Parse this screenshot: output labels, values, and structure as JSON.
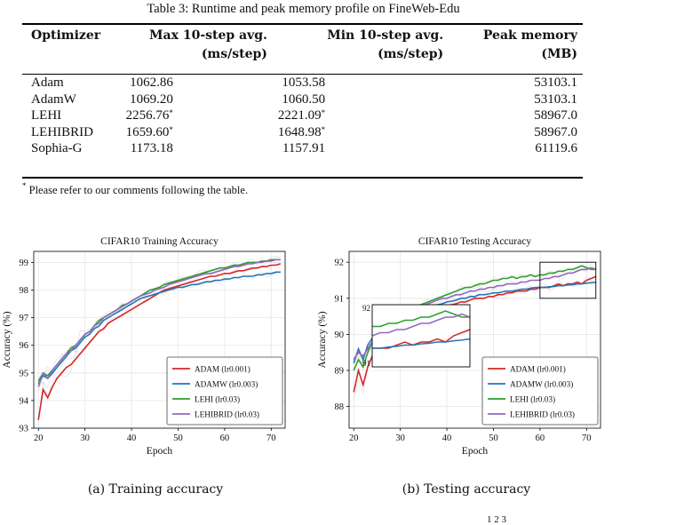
{
  "table": {
    "caption": "Table 3: Runtime and peak memory profile on FineWeb-Edu",
    "headers": [
      {
        "line1": "Optimizer",
        "line2": ""
      },
      {
        "line1": "Max 10-step avg.",
        "line2": "(ms/step)"
      },
      {
        "line1": "Min 10-step avg.",
        "line2": "(ms/step)"
      },
      {
        "line1": "Peak memory",
        "line2": "(MB)"
      }
    ],
    "rows": [
      {
        "name": "Adam",
        "max": "1062.86",
        "max_mark": "",
        "min": "1053.58",
        "min_mark": "",
        "mem": "53103.1"
      },
      {
        "name": "AdamW",
        "max": "1069.20",
        "max_mark": "",
        "min": "1060.50",
        "min_mark": "",
        "mem": "53103.1"
      },
      {
        "name": "LEHI",
        "max": "2256.76",
        "max_mark": "*",
        "min": "2221.09",
        "min_mark": "*",
        "mem": "58967.0"
      },
      {
        "name": "LEHIBRID",
        "max": "1659.60",
        "max_mark": "*",
        "min": "1648.98",
        "min_mark": "*",
        "mem": "58967.0"
      },
      {
        "name": "Sophia-G",
        "max": "1173.18",
        "max_mark": "",
        "min": "1157.91",
        "min_mark": "",
        "mem": "61119.6"
      }
    ],
    "footnote_mark": "*",
    "footnote_text": "Please refer to our comments following the table."
  },
  "figures": [
    {
      "subcaption": "(a) Training accuracy"
    },
    {
      "subcaption": "(b) Testing accuracy"
    }
  ],
  "page_fragment": "1          2     3",
  "chart_data": [
    {
      "type": "line",
      "title": "CIFAR10 Training Accuracy",
      "xlabel": "Epoch",
      "ylabel": "Accuracy (%)",
      "xlim": [
        19,
        73
      ],
      "ylim": [
        93,
        99.4
      ],
      "xticks": [
        20,
        30,
        40,
        50,
        60,
        70
      ],
      "yticks": [
        93,
        94,
        95,
        96,
        97,
        98,
        99
      ],
      "grid": true,
      "legend": "bottom-right",
      "x": [
        20,
        21,
        22,
        23,
        24,
        25,
        26,
        27,
        28,
        29,
        30,
        31,
        32,
        33,
        34,
        35,
        36,
        37,
        38,
        39,
        40,
        41,
        42,
        43,
        44,
        45,
        46,
        47,
        48,
        49,
        50,
        51,
        52,
        53,
        54,
        55,
        56,
        57,
        58,
        59,
        60,
        61,
        62,
        63,
        64,
        65,
        66,
        67,
        68,
        69,
        70,
        71,
        72
      ],
      "series": [
        {
          "name": "ADAM (lr0.001)",
          "color": "#d62728",
          "values": [
            93.3,
            94.4,
            94.1,
            94.5,
            94.8,
            95.0,
            95.2,
            95.3,
            95.5,
            95.7,
            95.9,
            96.1,
            96.3,
            96.5,
            96.6,
            96.8,
            96.9,
            97.0,
            97.1,
            97.2,
            97.3,
            97.4,
            97.5,
            97.6,
            97.7,
            97.8,
            97.9,
            98.0,
            98.05,
            98.1,
            98.15,
            98.2,
            98.25,
            98.3,
            98.35,
            98.4,
            98.45,
            98.5,
            98.5,
            98.55,
            98.6,
            98.6,
            98.65,
            98.7,
            98.7,
            98.75,
            98.8,
            98.8,
            98.85,
            98.85,
            98.9,
            98.9,
            98.95
          ]
        },
        {
          "name": "ADAMW (lr0.003)",
          "color": "#1f77b4",
          "values": [
            94.6,
            94.9,
            94.8,
            95.0,
            95.2,
            95.4,
            95.6,
            95.8,
            95.9,
            96.1,
            96.3,
            96.4,
            96.6,
            96.7,
            96.9,
            97.0,
            97.1,
            97.2,
            97.3,
            97.4,
            97.5,
            97.6,
            97.7,
            97.75,
            97.8,
            97.85,
            97.9,
            97.95,
            98.0,
            98.05,
            98.1,
            98.1,
            98.15,
            98.2,
            98.2,
            98.25,
            98.3,
            98.3,
            98.35,
            98.35,
            98.4,
            98.4,
            98.45,
            98.45,
            98.5,
            98.5,
            98.5,
            98.55,
            98.55,
            98.6,
            98.6,
            98.65,
            98.65
          ]
        },
        {
          "name": "LEHI (lr0.03)",
          "color": "#2ca02c",
          "values": [
            94.7,
            95.0,
            94.9,
            95.1,
            95.3,
            95.5,
            95.7,
            95.9,
            96.0,
            96.2,
            96.4,
            96.5,
            96.7,
            96.9,
            97.0,
            97.1,
            97.2,
            97.3,
            97.45,
            97.5,
            97.6,
            97.7,
            97.8,
            97.9,
            98.0,
            98.05,
            98.1,
            98.2,
            98.25,
            98.3,
            98.35,
            98.4,
            98.45,
            98.5,
            98.55,
            98.6,
            98.65,
            98.7,
            98.75,
            98.8,
            98.8,
            98.85,
            98.9,
            98.9,
            98.95,
            99.0,
            99.0,
            99.0,
            99.05,
            99.05,
            99.1,
            99.1,
            99.1
          ]
        },
        {
          "name": "LEHIBRID (lr0.03)",
          "color": "#9467bd",
          "values": [
            94.5,
            95.0,
            94.8,
            95.1,
            95.3,
            95.5,
            95.7,
            95.8,
            96.0,
            96.2,
            96.4,
            96.5,
            96.7,
            96.8,
            97.0,
            97.1,
            97.2,
            97.3,
            97.4,
            97.5,
            97.6,
            97.7,
            97.8,
            97.85,
            97.9,
            98.0,
            98.05,
            98.1,
            98.2,
            98.25,
            98.3,
            98.35,
            98.4,
            98.45,
            98.5,
            98.55,
            98.6,
            98.6,
            98.65,
            98.7,
            98.75,
            98.8,
            98.85,
            98.85,
            98.9,
            98.95,
            98.95,
            99.0,
            99.0,
            99.05,
            99.05,
            99.1,
            99.1
          ]
        }
      ]
    },
    {
      "type": "line",
      "title": "CIFAR10 Testing Accuracy",
      "xlabel": "Epoch",
      "ylabel": "Accuracy (%)",
      "xlim": [
        19,
        73
      ],
      "ylim": [
        87.4,
        92.3
      ],
      "xticks": [
        20,
        30,
        40,
        50,
        60,
        70
      ],
      "yticks": [
        88,
        89,
        90,
        91,
        92
      ],
      "grid": true,
      "legend": "bottom-right",
      "inset": {
        "xlim": [
          60,
          72
        ],
        "ylim": [
          91,
          92
        ],
        "yticks": [
          91,
          92
        ]
      },
      "x": [
        20,
        21,
        22,
        23,
        24,
        25,
        26,
        27,
        28,
        29,
        30,
        31,
        32,
        33,
        34,
        35,
        36,
        37,
        38,
        39,
        40,
        41,
        42,
        43,
        44,
        45,
        46,
        47,
        48,
        49,
        50,
        51,
        52,
        53,
        54,
        55,
        56,
        57,
        58,
        59,
        60,
        61,
        62,
        63,
        64,
        65,
        66,
        67,
        68,
        69,
        70,
        71,
        72
      ],
      "series": [
        {
          "name": "ADAM (lr0.001)",
          "color": "#d62728",
          "values": [
            88.4,
            89.0,
            88.6,
            89.1,
            89.4,
            89.6,
            89.8,
            89.9,
            90.0,
            90.1,
            90.2,
            90.3,
            90.4,
            90.45,
            90.5,
            90.55,
            90.6,
            90.65,
            90.7,
            90.75,
            90.8,
            90.82,
            90.85,
            90.9,
            90.9,
            90.95,
            91.0,
            91.0,
            91.0,
            91.05,
            91.05,
            91.1,
            91.1,
            91.15,
            91.15,
            91.2,
            91.2,
            91.2,
            91.25,
            91.25,
            91.3,
            91.3,
            91.3,
            91.35,
            91.4,
            91.35,
            91.4,
            91.4,
            91.45,
            91.4,
            91.5,
            91.55,
            91.6
          ]
        },
        {
          "name": "ADAMW (lr0.003)",
          "color": "#1f77b4",
          "values": [
            89.2,
            89.6,
            89.3,
            89.7,
            89.9,
            90.0,
            90.1,
            90.2,
            90.3,
            90.4,
            90.45,
            90.5,
            90.55,
            90.6,
            90.65,
            90.7,
            90.75,
            90.8,
            90.82,
            90.85,
            90.9,
            90.92,
            90.95,
            91.0,
            91.0,
            91.05,
            91.05,
            91.1,
            91.1,
            91.12,
            91.15,
            91.15,
            91.18,
            91.2,
            91.2,
            91.22,
            91.25,
            91.25,
            91.28,
            91.3,
            91.3,
            91.3,
            91.32,
            91.33,
            91.35,
            91.35,
            91.37,
            91.38,
            91.4,
            91.4,
            91.42,
            91.43,
            91.45
          ]
        },
        {
          "name": "LEHI (lr0.03)",
          "color": "#2ca02c",
          "values": [
            89.0,
            89.3,
            89.1,
            89.5,
            89.8,
            90.0,
            90.2,
            90.3,
            90.4,
            90.5,
            90.55,
            90.6,
            90.7,
            90.75,
            90.8,
            90.85,
            90.9,
            90.95,
            91.0,
            91.05,
            91.1,
            91.15,
            91.2,
            91.25,
            91.3,
            91.3,
            91.35,
            91.4,
            91.4,
            91.45,
            91.5,
            91.5,
            91.55,
            91.55,
            91.6,
            91.55,
            91.6,
            91.6,
            91.65,
            91.6,
            91.65,
            91.65,
            91.7,
            91.7,
            91.75,
            91.75,
            91.8,
            91.8,
            91.85,
            91.9,
            91.85,
            91.8,
            91.8
          ]
        },
        {
          "name": "LEHIBRID (lr0.03)",
          "color": "#9467bd",
          "values": [
            89.3,
            89.5,
            89.4,
            89.6,
            89.8,
            90.0,
            90.1,
            90.25,
            90.35,
            90.45,
            90.5,
            90.55,
            90.6,
            90.7,
            90.75,
            90.8,
            90.85,
            90.9,
            90.95,
            91.0,
            91.0,
            91.05,
            91.1,
            91.1,
            91.15,
            91.2,
            91.2,
            91.25,
            91.25,
            91.3,
            91.3,
            91.35,
            91.35,
            91.4,
            91.4,
            91.4,
            91.45,
            91.45,
            91.5,
            91.5,
            91.5,
            91.55,
            91.55,
            91.6,
            91.6,
            91.65,
            91.7,
            91.7,
            91.75,
            91.8,
            91.8,
            91.85,
            91.8
          ]
        }
      ]
    }
  ]
}
